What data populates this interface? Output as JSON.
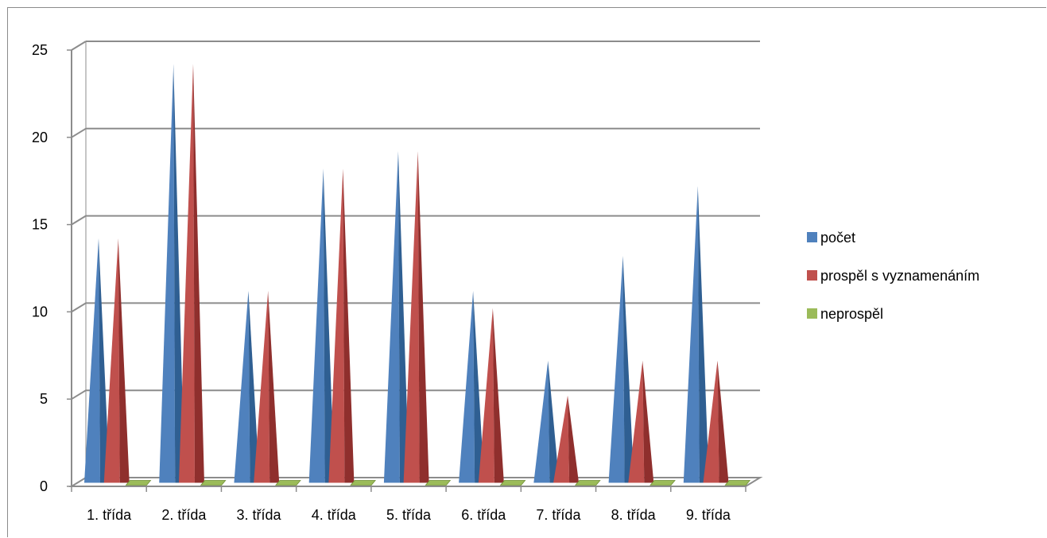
{
  "chart_data": {
    "type": "bar",
    "style": "3d-cone",
    "categories": [
      "1. třída",
      "2. třída",
      "3. třída",
      "4. třída",
      "5. třída",
      "6. třída",
      "7. třída",
      "8. třída",
      "9. třída"
    ],
    "series": [
      {
        "name": "počet",
        "color": "#4f81bd",
        "shade": "#2f5f92",
        "values": [
          14,
          24,
          11,
          18,
          19,
          11,
          7,
          13,
          17
        ]
      },
      {
        "name": "prospěl s vyznamenáním",
        "color": "#c0504d",
        "shade": "#8f2f2d",
        "values": [
          14,
          24,
          11,
          18,
          19,
          10,
          5,
          7,
          7
        ]
      },
      {
        "name": "neprospěl",
        "color": "#9bbb59",
        "shade": "#6f8f35",
        "values": [
          0,
          0,
          0,
          0,
          0,
          0,
          0,
          0,
          0
        ]
      }
    ],
    "ylim": [
      0,
      25
    ],
    "yticks": [
      "0",
      "5",
      "10",
      "15",
      "20",
      "25"
    ],
    "grid": true,
    "legend": "right"
  }
}
